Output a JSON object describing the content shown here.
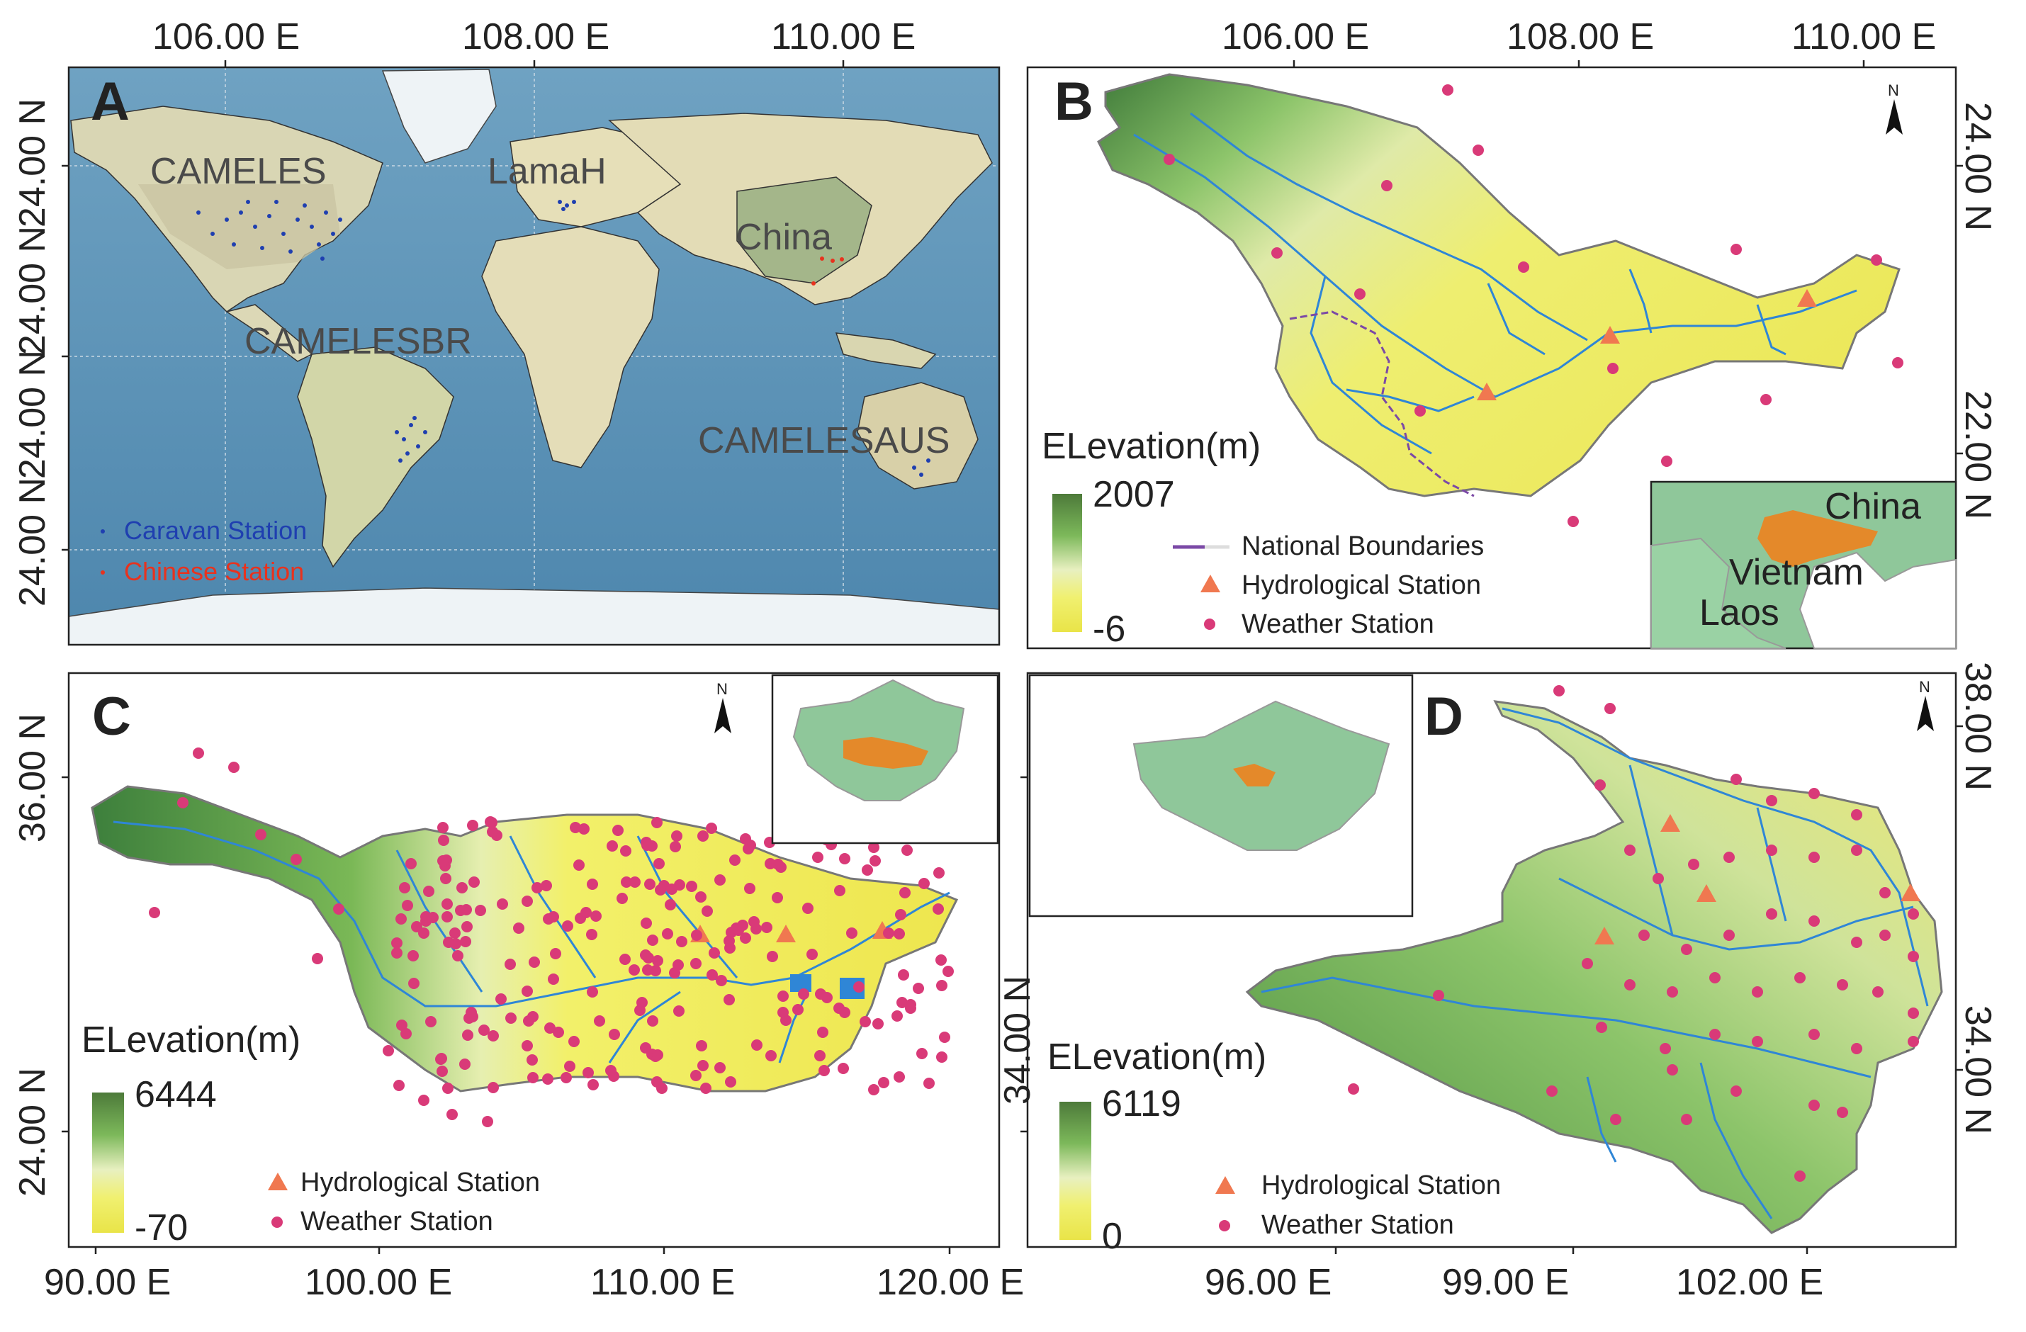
{
  "panel_a": {
    "letter": "A",
    "top_ticks": [
      "106.00 E",
      "108.00 E",
      "110.00 E"
    ],
    "left_ticks": [
      "24.00 N",
      "24.00 N",
      "24.00 N",
      "24.00 N"
    ],
    "regions": [
      "CAMELES",
      "LamaH",
      "China",
      "CAMELESBR",
      "CAMELESAUS"
    ],
    "legend": [
      "Caravan Station",
      "Chinese Station"
    ],
    "colors": {
      "caravan": "#1f3fb0",
      "chinese": "#e8321e",
      "ocean": "#5c93b6",
      "land": "#e6dfb8",
      "ice": "#eef3f6"
    }
  },
  "panel_b": {
    "letter": "B",
    "top_ticks": [
      "106.00 E",
      "108.00 E",
      "110.00 E"
    ],
    "right_ticks": [
      "24.00 N",
      "22.00 N"
    ],
    "elevation_title": "ELevation(m)",
    "elev_max": "2007",
    "elev_min": "-6",
    "legend": [
      "National Boundaries",
      "Hydrological Station",
      "Weather Station"
    ],
    "inset_labels": [
      "China",
      "Vietnam",
      "Laos"
    ],
    "north_label": "N"
  },
  "panel_c": {
    "letter": "C",
    "left_ticks": [
      "36.00 N",
      "24.00 N"
    ],
    "bottom_ticks": [
      "90.00 E",
      "100.00 E",
      "110.00 E",
      "120.00 E"
    ],
    "elevation_title": "ELevation(m)",
    "elev_max": "6444",
    "elev_min": "-70",
    "legend": [
      "Hydrological Station",
      "Weather Station"
    ],
    "north_label": "N"
  },
  "panel_d": {
    "letter": "D",
    "right_ticks": [
      "38.00 N",
      "34.00 N",
      "34.00 N"
    ],
    "bottom_ticks": [
      "96.00 E",
      "99.00 E",
      "102.00 E"
    ],
    "elevation_title": "ELevation(m)",
    "elev_max": "6119",
    "elev_min": "0",
    "legend": [
      "Hydrological Station",
      "Weather Station"
    ],
    "north_label": "N"
  },
  "colors": {
    "hydro": "#f07850",
    "weather": "#d93a78",
    "river": "#2f86d6",
    "boundary": "#7b49a6",
    "inset_fill": "#8fc79a",
    "basin_orange": "#e4892a"
  }
}
